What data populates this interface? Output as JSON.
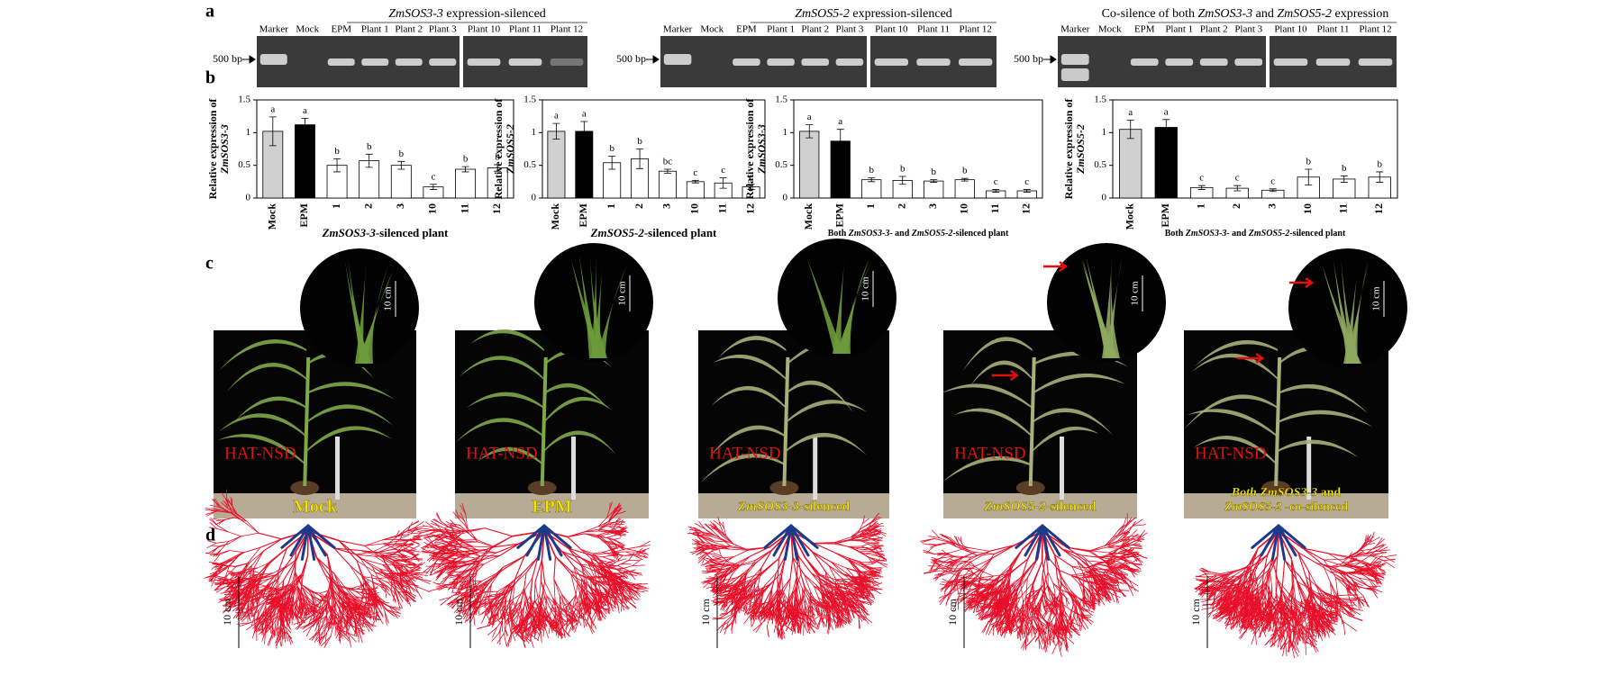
{
  "panel_labels": [
    "a",
    "b",
    "c",
    "d"
  ],
  "gels": [
    {
      "title": [
        {
          "text": "ZmSOS3-3",
          "italic": true
        },
        {
          "text": " expression-silenced"
        }
      ],
      "marker_label": "500 bp",
      "lanes": [
        "Marker",
        "Mock",
        "EPM",
        "Plant 1",
        "Plant 2",
        "Plant 3",
        "Plant 10",
        "Plant 11",
        "Plant 12"
      ]
    },
    {
      "title": [
        {
          "text": "ZmSOS5-2",
          "italic": true
        },
        {
          "text": " expression-silenced"
        }
      ],
      "marker_label": "500 bp",
      "lanes": [
        "Marker",
        "Mock",
        "EPM",
        "Plant 1",
        "Plant 2",
        "Plant 3",
        "Plant 10",
        "Plant 11",
        "Plant 12"
      ]
    },
    {
      "title": [
        {
          "text": "Co-silence of both "
        },
        {
          "text": "ZmSOS3-3",
          "italic": true
        },
        {
          "text": " and "
        },
        {
          "text": "ZmSOS5-2",
          "italic": true
        },
        {
          "text": " expression"
        }
      ],
      "marker_label": "500 bp",
      "lanes": [
        "Marker",
        "Mock",
        "EPM",
        "Plant 1",
        "Plant 2",
        "Plant 3",
        "Plant 10",
        "Plant 11",
        "Plant 12"
      ]
    }
  ],
  "chart_data": [
    {
      "type": "bar",
      "ylabel": [
        {
          "text": "Relative expression of"
        },
        {
          "text": "ZmSOS3-3",
          "italic": true
        }
      ],
      "xlabel": [
        {
          "text": "ZmSOS3-3",
          "italic": true
        },
        {
          "text": "-silenced plant"
        }
      ],
      "categories": [
        "Mock",
        "EPM",
        "1",
        "2",
        "3",
        "10",
        "11",
        "12"
      ],
      "values": [
        1.02,
        1.12,
        0.5,
        0.57,
        0.5,
        0.17,
        0.44,
        0.46
      ],
      "errors": [
        0.22,
        0.1,
        0.1,
        0.1,
        0.06,
        0.04,
        0.04,
        0.05
      ],
      "letters": [
        "a",
        "a",
        "b",
        "b",
        "b",
        "c",
        "b",
        "b"
      ],
      "colors": [
        "#d0d0d0",
        "#000000",
        "#ffffff",
        "#ffffff",
        "#ffffff",
        "#ffffff",
        "#ffffff",
        "#ffffff"
      ],
      "ylim": [
        0,
        1.5
      ],
      "yticks": [
        0,
        0.5,
        1,
        1.5
      ]
    },
    {
      "type": "bar",
      "ylabel": [
        {
          "text": "Relative expression of"
        },
        {
          "text": "ZmSOS5-2",
          "italic": true
        }
      ],
      "xlabel": [
        {
          "text": "ZmSOS5-2",
          "italic": true
        },
        {
          "text": "-silenced plant"
        }
      ],
      "categories": [
        "Mock",
        "EPM",
        "1",
        "2",
        "3",
        "10",
        "11",
        "12"
      ],
      "values": [
        1.02,
        1.02,
        0.54,
        0.6,
        0.41,
        0.25,
        0.23,
        0.17
      ],
      "errors": [
        0.12,
        0.15,
        0.1,
        0.15,
        0.03,
        0.02,
        0.08,
        0.04
      ],
      "letters": [
        "a",
        "a",
        "b",
        "b",
        "bc",
        "c",
        "c",
        "c"
      ],
      "colors": [
        "#d0d0d0",
        "#000000",
        "#ffffff",
        "#ffffff",
        "#ffffff",
        "#ffffff",
        "#ffffff",
        "#ffffff"
      ],
      "ylim": [
        0,
        1.5
      ],
      "yticks": [
        0,
        0.5,
        1,
        1.5
      ]
    },
    {
      "type": "bar",
      "ylabel": [
        {
          "text": "Relative expression of"
        },
        {
          "text": "ZmSOS3-3",
          "italic": true
        }
      ],
      "xlabel": [
        {
          "text": "Both "
        },
        {
          "text": "ZmSOS3-3",
          "italic": true
        },
        {
          "text": "- and "
        },
        {
          "text": "ZmSOS5-2",
          "italic": true
        },
        {
          "text": "-silenced plant"
        }
      ],
      "categories": [
        "Mock",
        "EPM",
        "1",
        "2",
        "3",
        "10",
        "11",
        "12"
      ],
      "values": [
        1.02,
        0.87,
        0.28,
        0.27,
        0.26,
        0.28,
        0.11,
        0.11
      ],
      "errors": [
        0.1,
        0.18,
        0.03,
        0.06,
        0.02,
        0.02,
        0.02,
        0.02
      ],
      "letters": [
        "a",
        "a",
        "b",
        "b",
        "b",
        "b",
        "c",
        "c"
      ],
      "colors": [
        "#d0d0d0",
        "#000000",
        "#ffffff",
        "#ffffff",
        "#ffffff",
        "#ffffff",
        "#ffffff",
        "#ffffff"
      ],
      "ylim": [
        0,
        1.5
      ],
      "yticks": [
        0,
        0.5,
        1,
        1.5
      ]
    },
    {
      "type": "bar",
      "ylabel": [
        {
          "text": "Relative expression of"
        },
        {
          "text": "ZmSOS5-2",
          "italic": true
        }
      ],
      "xlabel": [
        {
          "text": "Both "
        },
        {
          "text": "ZmSOS3-3",
          "italic": true
        },
        {
          "text": "- and "
        },
        {
          "text": "ZmSOS5-2",
          "italic": true
        },
        {
          "text": "-silenced plant"
        }
      ],
      "categories": [
        "Mock",
        "EPM",
        "1",
        "2",
        "3",
        "10",
        "11",
        "12"
      ],
      "values": [
        1.05,
        1.08,
        0.16,
        0.15,
        0.12,
        0.32,
        0.29,
        0.32
      ],
      "errors": [
        0.14,
        0.12,
        0.03,
        0.04,
        0.02,
        0.12,
        0.05,
        0.08
      ],
      "letters": [
        "a",
        "a",
        "c",
        "c",
        "c",
        "b",
        "b",
        "b"
      ],
      "colors": [
        "#d0d0d0",
        "#000000",
        "#ffffff",
        "#ffffff",
        "#ffffff",
        "#ffffff",
        "#ffffff",
        "#ffffff"
      ],
      "ylim": [
        0,
        1.5
      ],
      "yticks": [
        0,
        0.5,
        1,
        1.5
      ]
    }
  ],
  "photos": [
    {
      "label": "HAT-NSD",
      "scale": "10 cm",
      "caption": [
        [
          {
            "text": "Mock"
          }
        ]
      ]
    },
    {
      "label": "HAT-NSD",
      "scale": "10 cm",
      "caption": [
        [
          {
            "text": "EPM"
          }
        ]
      ]
    },
    {
      "label": "HAT-NSD",
      "scale": "10 cm",
      "caption": [
        [
          {
            "text": "ZmSOS3-3",
            "italic": true
          },
          {
            "text": "-silenced"
          }
        ]
      ]
    },
    {
      "label": "HAT-NSD",
      "scale": "10 cm",
      "caption": [
        [
          {
            "text": "ZmSOS5-2",
            "italic": true
          },
          {
            "text": "-silenced"
          }
        ]
      ]
    },
    {
      "label": "HAT-NSD",
      "scale": "10 cm",
      "caption": [
        [
          {
            "text": "Both ZmSOS3-3",
            "italic": true
          },
          {
            "text": " and"
          }
        ],
        [
          {
            "text": "ZmSOS5-2",
            "italic": true
          },
          {
            "text": " -co-silenced"
          }
        ]
      ]
    }
  ],
  "roots": [
    {
      "scale": "10 cm"
    },
    {
      "scale": "10 cm"
    },
    {
      "scale": "10 cm"
    },
    {
      "scale": "10 cm"
    },
    {
      "scale": "10 cm"
    }
  ]
}
